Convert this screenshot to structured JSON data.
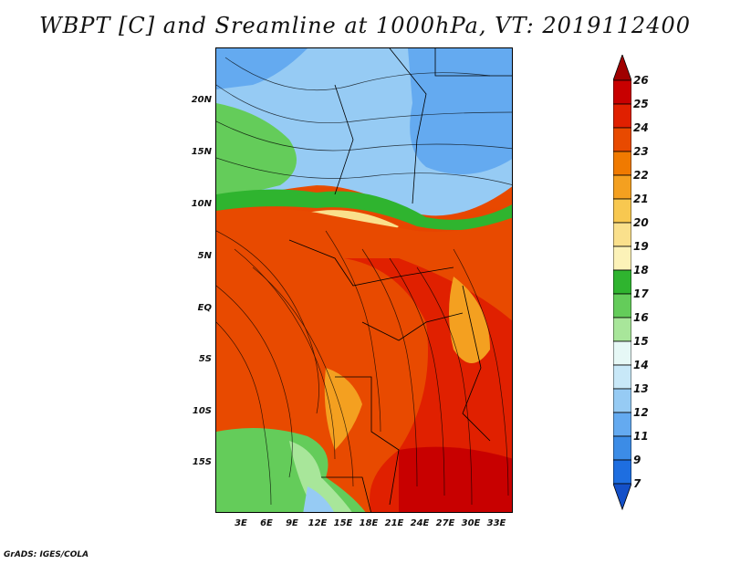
{
  "title": "WBPT [C] and Sreamline at 1000hPa, VT: 2019112400",
  "footer": "GrADS: IGES/COLA",
  "lat_labels": [
    "20N",
    "15N",
    "10N",
    "5N",
    "EQ",
    "5S",
    "10S",
    "15S"
  ],
  "lon_labels": [
    "3E",
    "6E",
    "9E",
    "12E",
    "15E",
    "18E",
    "21E",
    "24E",
    "27E",
    "30E",
    "33E"
  ],
  "colorbar": {
    "labels": [
      "26",
      "25",
      "24",
      "23",
      "22",
      "21",
      "20",
      "19",
      "18",
      "17",
      "16",
      "15",
      "14",
      "13",
      "12",
      "11",
      "9",
      "7"
    ],
    "colors": [
      "#a00000",
      "#c80000",
      "#e02000",
      "#e84a00",
      "#f07a00",
      "#f4a020",
      "#f8c850",
      "#fae08c",
      "#fcf2b8",
      "#2fb42f",
      "#64cc5a",
      "#a8e69a",
      "#e6f8f6",
      "#c8e8f8",
      "#96cbf4",
      "#64aaf0",
      "#3c8ce6",
      "#1e6ee0",
      "#1450c8"
    ]
  }
}
